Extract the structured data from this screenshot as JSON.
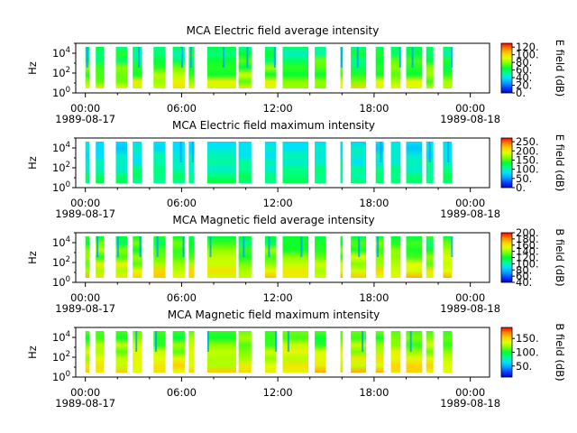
{
  "x_tick_labels": [
    {
      "time": "00:00",
      "date": "1989-08-17",
      "t": 0
    },
    {
      "time": "06:00",
      "date": "",
      "t": 6
    },
    {
      "time": "12:00",
      "date": "",
      "t": 12
    },
    {
      "time": "18:00",
      "date": "",
      "t": 18
    },
    {
      "time": "00:00",
      "date": "1989-08-18",
      "t": 24
    }
  ],
  "colors": {
    "colormap": [
      "#0000c8",
      "#0040ff",
      "#00a0ff",
      "#00e0ff",
      "#00ff90",
      "#00ff30",
      "#80ff00",
      "#e0ff00",
      "#ffd000",
      "#ff8000",
      "#ff0000"
    ]
  },
  "chart_data": [
    {
      "type": "heatmap",
      "title": "MCA  Electric field average intensity",
      "xlabel": "",
      "ylabel": "Hz",
      "y_scale": "log",
      "y_ticks": [
        "10^4",
        "10^2",
        "10^0"
      ],
      "xlim_hours": [
        -0.6,
        25.2
      ],
      "ylim": [
        1,
        100000
      ],
      "colorbar": {
        "label": "E field (dB)",
        "ticks": [
          "120.",
          "100.",
          "80.",
          "60.",
          "40.",
          "20.",
          "0."
        ],
        "range": [
          0,
          130
        ]
      },
      "data_segments_hours": [
        [
          0.0,
          0.25
        ],
        [
          0.65,
          1.15
        ],
        [
          1.9,
          2.6
        ],
        [
          2.95,
          3.5
        ],
        [
          4.25,
          5.0
        ],
        [
          5.45,
          6.2
        ],
        [
          6.45,
          6.8
        ],
        [
          7.6,
          9.4
        ],
        [
          9.55,
          10.35
        ],
        [
          11.2,
          11.9
        ],
        [
          12.3,
          13.9
        ],
        [
          14.3,
          15.0
        ],
        [
          15.9,
          16.05
        ],
        [
          16.55,
          17.5
        ],
        [
          18.1,
          18.6
        ],
        [
          19.05,
          19.65
        ],
        [
          20.0,
          21.0
        ],
        [
          21.25,
          21.7
        ],
        [
          22.3,
          22.85
        ]
      ],
      "typical_db_range": [
        40,
        90
      ]
    },
    {
      "type": "heatmap",
      "title": "MCA  Electric field maximum intensity",
      "xlabel": "",
      "ylabel": "Hz",
      "y_scale": "log",
      "y_ticks": [
        "10^4",
        "10^2",
        "10^0"
      ],
      "xlim_hours": [
        -0.6,
        25.2
      ],
      "ylim": [
        1,
        100000
      ],
      "colorbar": {
        "label": "E field (dB)",
        "ticks": [
          "250.",
          "200.",
          "150.",
          "100.",
          "50.",
          "0."
        ],
        "range": [
          0,
          270
        ]
      },
      "data_segments_hours": [
        [
          0.0,
          0.25
        ],
        [
          0.65,
          1.15
        ],
        [
          1.9,
          2.6
        ],
        [
          2.95,
          3.5
        ],
        [
          4.25,
          5.0
        ],
        [
          5.45,
          6.2
        ],
        [
          6.45,
          6.8
        ],
        [
          7.6,
          9.4
        ],
        [
          9.55,
          10.35
        ],
        [
          11.2,
          11.9
        ],
        [
          12.3,
          13.9
        ],
        [
          14.3,
          15.0
        ],
        [
          15.9,
          16.05
        ],
        [
          16.55,
          17.5
        ],
        [
          18.1,
          18.6
        ],
        [
          19.05,
          19.65
        ],
        [
          20.0,
          21.0
        ],
        [
          21.25,
          21.7
        ],
        [
          22.3,
          22.85
        ]
      ],
      "typical_db_range": [
        60,
        120
      ]
    },
    {
      "type": "heatmap",
      "title": "MCA  Magnetic field average intensity",
      "xlabel": "",
      "ylabel": "Hz",
      "y_scale": "log",
      "y_ticks": [
        "10^4",
        "10^2",
        "10^0"
      ],
      "xlim_hours": [
        -0.6,
        25.2
      ],
      "ylim": [
        1,
        100000
      ],
      "colorbar": {
        "label": "B field (dB)",
        "ticks": [
          "200.",
          "180.",
          "160.",
          "140.",
          "120.",
          "100.",
          "80.",
          "60.",
          "40."
        ],
        "range": [
          40,
          200
        ]
      },
      "data_segments_hours": [
        [
          0.0,
          0.25
        ],
        [
          0.65,
          1.15
        ],
        [
          1.9,
          2.6
        ],
        [
          2.95,
          3.5
        ],
        [
          4.25,
          5.0
        ],
        [
          5.45,
          6.2
        ],
        [
          6.45,
          6.8
        ],
        [
          7.6,
          9.4
        ],
        [
          9.55,
          10.35
        ],
        [
          11.2,
          11.9
        ],
        [
          12.3,
          13.9
        ],
        [
          14.3,
          15.0
        ],
        [
          15.9,
          16.05
        ],
        [
          16.55,
          17.5
        ],
        [
          18.1,
          18.6
        ],
        [
          19.05,
          19.65
        ],
        [
          20.0,
          21.0
        ],
        [
          21.25,
          21.7
        ],
        [
          22.3,
          22.85
        ]
      ],
      "typical_db_range": [
        100,
        160
      ]
    },
    {
      "type": "heatmap",
      "title": "MCA  Magnetic field maximum intensity",
      "xlabel": "",
      "ylabel": "Hz",
      "y_scale": "log",
      "y_ticks": [
        "10^4",
        "10^2",
        "10^0"
      ],
      "xlim_hours": [
        -0.6,
        25.2
      ],
      "ylim": [
        1,
        100000
      ],
      "colorbar": {
        "label": "B field (dB)",
        "ticks": [
          "150.",
          "100.",
          "50."
        ],
        "range": [
          10,
          190
        ]
      },
      "data_segments_hours": [
        [
          0.0,
          0.25
        ],
        [
          0.65,
          1.15
        ],
        [
          1.9,
          2.6
        ],
        [
          2.95,
          3.5
        ],
        [
          4.25,
          5.0
        ],
        [
          5.45,
          6.2
        ],
        [
          6.45,
          6.8
        ],
        [
          7.6,
          9.4
        ],
        [
          9.55,
          10.35
        ],
        [
          11.2,
          11.9
        ],
        [
          12.3,
          13.9
        ],
        [
          14.3,
          15.0
        ],
        [
          15.9,
          16.05
        ],
        [
          16.55,
          17.5
        ],
        [
          18.1,
          18.6
        ],
        [
          19.05,
          19.65
        ],
        [
          20.0,
          21.0
        ],
        [
          21.25,
          21.7
        ],
        [
          22.3,
          22.85
        ]
      ],
      "typical_db_range": [
        90,
        150
      ]
    }
  ]
}
